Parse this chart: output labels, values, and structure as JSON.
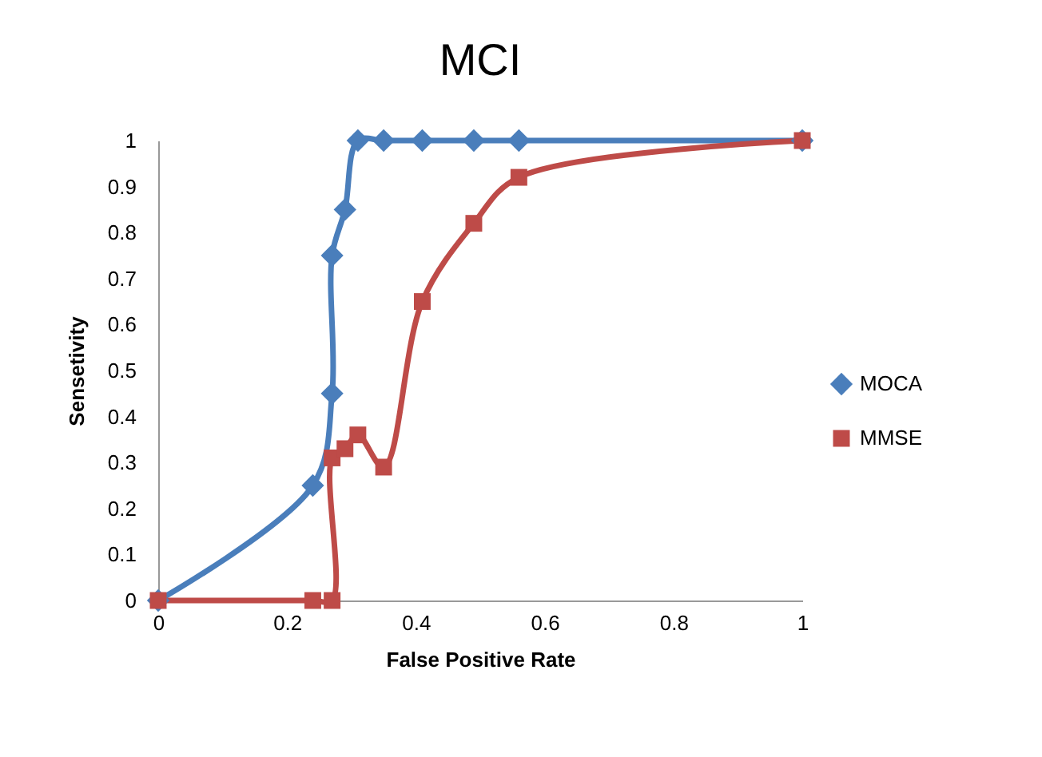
{
  "chart_data": {
    "type": "line",
    "title": "MCI",
    "xlabel": "False Positive Rate",
    "ylabel": "Sensetivity",
    "xlim": [
      0,
      1
    ],
    "xticks": [
      0,
      0.2,
      0.4,
      0.6,
      0.8,
      1
    ],
    "ylim": [
      0,
      1
    ],
    "yticks": [
      0,
      0.1,
      0.2,
      0.3,
      0.4,
      0.5,
      0.6,
      0.7,
      0.8,
      0.9,
      1
    ],
    "grid": false,
    "legend": "right",
    "marker": "diamond",
    "series": [
      {
        "name": "MOCA",
        "color": "#4a7ebb",
        "x": [
          0,
          0.24,
          0.27,
          0.27,
          0.29,
          0.31,
          0.35,
          0.41,
          0.49,
          0.56,
          1
        ],
        "values": [
          0,
          0.25,
          0.45,
          0.75,
          0.85,
          1,
          1,
          1,
          1,
          1,
          1
        ]
      },
      {
        "name": "MMSE",
        "color": "#be4b48",
        "marker": "square",
        "x": [
          0,
          0.24,
          0.27,
          0.27,
          0.29,
          0.31,
          0.35,
          0.41,
          0.49,
          0.56,
          1
        ],
        "values": [
          0,
          0,
          0,
          0.31,
          0.33,
          0.36,
          0.29,
          0.65,
          0.82,
          0.92,
          1
        ]
      }
    ]
  }
}
